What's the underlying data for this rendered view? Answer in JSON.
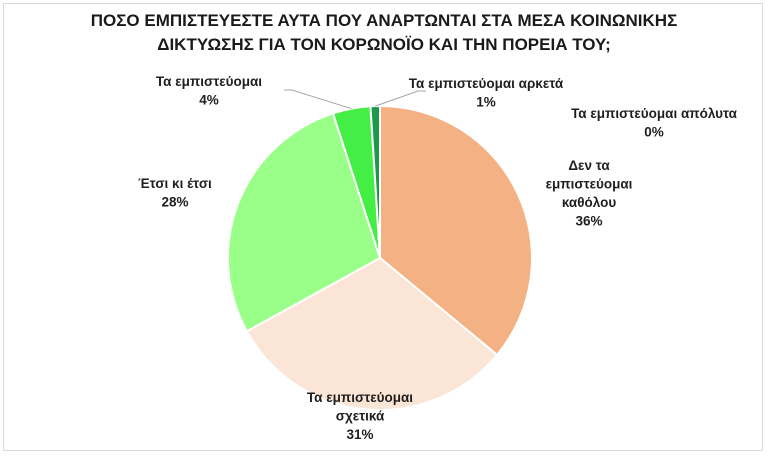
{
  "chart_data": {
    "type": "pie",
    "title_lines": [
      "ΠΟΣΟ ΕΜΠΙΣΤΕΥΕΣΤΕ ΑΥΤΑ ΠΟΥ ΑΝΑΡΤΩΝΤΑΙ ΣΤΑ ΜΕΣΑ ΚΟΙΝΩΝΙΚΗΣ",
      "ΔΙΚΤΥΩΣΗΣ ΓΙΑ ΤΟΝ ΚΟΡΩΝΟΪΟ ΚΑΙ ΤΗΝ ΠΟΡΕΙΑ ΤΟΥ;"
    ],
    "slices": [
      {
        "label_lines": [
          "Δεν τα",
          "εμπιστεύομαι",
          "καθόλου"
        ],
        "value": 36,
        "pct_label": "36%",
        "color": "#f4b183"
      },
      {
        "label_lines": [
          "Τα εμπιστεύομαι",
          "σχετικά"
        ],
        "value": 31,
        "pct_label": "31%",
        "color": "#fbe5d6"
      },
      {
        "label_lines": [
          "Έτσι κι έτσι"
        ],
        "value": 28,
        "pct_label": "28%",
        "color": "#99ff88"
      },
      {
        "label_lines": [
          "Τα εμπιστεύομαι"
        ],
        "value": 4,
        "pct_label": "4%",
        "color": "#44ee44"
      },
      {
        "label_lines": [
          "Τα εμπιστεύομαι αρκετά"
        ],
        "value": 1,
        "pct_label": "1%",
        "color": "#1a9a4a"
      },
      {
        "label_lines": [
          "Τα εμπιστεύομαι απόλυτα"
        ],
        "value": 0,
        "pct_label": "0%",
        "color": "#0b6b2e"
      }
    ],
    "legend": "none"
  }
}
